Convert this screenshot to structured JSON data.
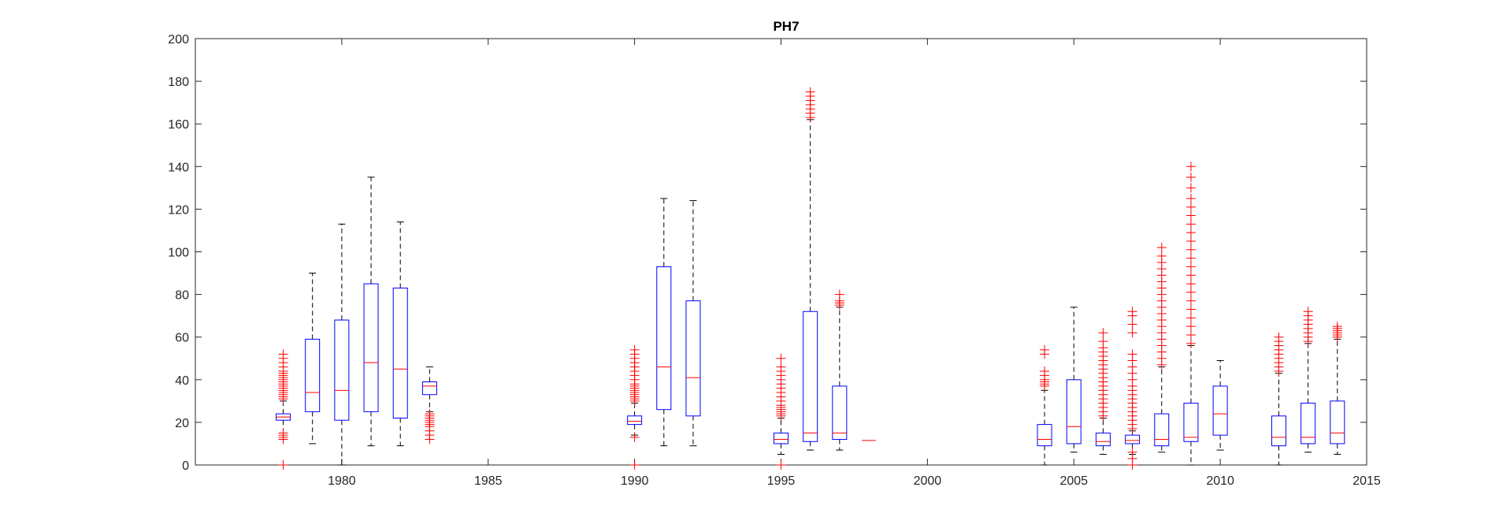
{
  "chart_data": {
    "type": "boxplot",
    "title": "PH7",
    "xlabel": "",
    "ylabel": "",
    "xlim": [
      1975,
      2015
    ],
    "ylim": [
      0,
      200
    ],
    "x_ticks": [
      1980,
      1985,
      1990,
      1995,
      2000,
      2005,
      2010,
      2015
    ],
    "y_ticks": [
      0,
      20,
      40,
      60,
      80,
      100,
      120,
      140,
      160,
      180,
      200
    ],
    "grid": false,
    "colors": {
      "box": "#0000ff",
      "median": "#ff0000",
      "whisker": "#000000",
      "outlier": "#ff0000"
    },
    "boxes": [
      {
        "x": 1978,
        "low": 12,
        "q1": 21,
        "median": 22.5,
        "q3": 24,
        "high": 30,
        "outliers": [
          0,
          12,
          13,
          14,
          15,
          31,
          32,
          33,
          34,
          35,
          36,
          37,
          38,
          39,
          40,
          41,
          42,
          43,
          44,
          46,
          48,
          50,
          52
        ]
      },
      {
        "x": 1979,
        "low": 10,
        "q1": 25,
        "median": 34,
        "q3": 59,
        "high": 90,
        "outliers": []
      },
      {
        "x": 1980,
        "low": 0,
        "q1": 21,
        "median": 35,
        "q3": 68,
        "high": 113,
        "outliers": []
      },
      {
        "x": 1981,
        "low": 9,
        "q1": 25,
        "median": 48,
        "q3": 85,
        "high": 135,
        "outliers": []
      },
      {
        "x": 1982,
        "low": 9,
        "q1": 22,
        "median": 45,
        "q3": 83,
        "high": 114,
        "outliers": []
      },
      {
        "x": 1983,
        "low": 25,
        "q1": 33,
        "median": 37,
        "q3": 39,
        "high": 46,
        "outliers": [
          12,
          14,
          16,
          18,
          19,
          20,
          21,
          22,
          23,
          24
        ]
      },
      {
        "x": 1990,
        "low": 14,
        "q1": 19,
        "median": 20.5,
        "q3": 23,
        "high": 29,
        "outliers": [
          0,
          13,
          30,
          31,
          32,
          33,
          34,
          35,
          36,
          37,
          38,
          40,
          42,
          44,
          46,
          48,
          50,
          52,
          54
        ]
      },
      {
        "x": 1991,
        "low": 9,
        "q1": 26,
        "median": 46,
        "q3": 93,
        "high": 125,
        "outliers": []
      },
      {
        "x": 1992,
        "low": 9,
        "q1": 23,
        "median": 41,
        "q3": 77,
        "high": 124,
        "outliers": []
      },
      {
        "x": 1995,
        "low": 5,
        "q1": 10,
        "median": 12,
        "q3": 15,
        "high": 22,
        "outliers": [
          0,
          23,
          24,
          25,
          26,
          27,
          28,
          30,
          32,
          34,
          36,
          38,
          40,
          42,
          44,
          46,
          50
        ]
      },
      {
        "x": 1996,
        "low": 7,
        "q1": 11,
        "median": 15,
        "q3": 72,
        "high": 162,
        "outliers": [
          163,
          165,
          167,
          169,
          171,
          173,
          175
        ]
      },
      {
        "x": 1997,
        "low": 7,
        "q1": 12,
        "median": 15,
        "q3": 37,
        "high": 74,
        "outliers": [
          75,
          76,
          77,
          80
        ]
      },
      {
        "x": 1998,
        "low": 11.5,
        "q1": 11.5,
        "median": 11.5,
        "q3": 11.5,
        "high": 11.5,
        "outliers": []
      },
      {
        "x": 2004,
        "low": 0,
        "q1": 9,
        "median": 12,
        "q3": 19,
        "high": 35,
        "outliers": [
          37,
          38,
          39,
          40,
          42,
          44,
          52,
          54
        ]
      },
      {
        "x": 2005,
        "low": 6,
        "q1": 10,
        "median": 18,
        "q3": 40,
        "high": 74,
        "outliers": []
      },
      {
        "x": 2006,
        "low": 5,
        "q1": 9,
        "median": 11,
        "q3": 15,
        "high": 22,
        "outliers": [
          23,
          25,
          27,
          29,
          31,
          33,
          35,
          37,
          39,
          41,
          43,
          45,
          47,
          49,
          51,
          53,
          55,
          58,
          62
        ]
      },
      {
        "x": 2007,
        "low": 5,
        "q1": 10,
        "median": 11.5,
        "q3": 14,
        "high": 16,
        "outliers": [
          0,
          3,
          6,
          17,
          19,
          21,
          23,
          25,
          27,
          29,
          31,
          33,
          35,
          37,
          40,
          43,
          46,
          49,
          52,
          62,
          66,
          70,
          72
        ]
      },
      {
        "x": 2008,
        "low": 6,
        "q1": 9,
        "median": 12,
        "q3": 24,
        "high": 46,
        "outliers": [
          47,
          50,
          53,
          56,
          59,
          62,
          65,
          68,
          71,
          74,
          77,
          80,
          83,
          86,
          89,
          92,
          95,
          98,
          102
        ]
      },
      {
        "x": 2009,
        "low": 0,
        "q1": 11,
        "median": 13,
        "q3": 29,
        "high": 56,
        "outliers": [
          57,
          61,
          65,
          69,
          73,
          77,
          81,
          85,
          89,
          93,
          97,
          101,
          105,
          109,
          113,
          117,
          121,
          125,
          130,
          135,
          140
        ]
      },
      {
        "x": 2010,
        "low": 7,
        "q1": 14,
        "median": 24,
        "q3": 37,
        "high": 49,
        "outliers": []
      },
      {
        "x": 2012,
        "low": 0,
        "q1": 9,
        "median": 13,
        "q3": 23,
        "high": 43,
        "outliers": [
          44,
          46,
          48,
          50,
          52,
          54,
          56,
          58,
          60
        ]
      },
      {
        "x": 2013,
        "low": 6,
        "q1": 10,
        "median": 13,
        "q3": 29,
        "high": 57,
        "outliers": [
          58,
          60,
          62,
          64,
          66,
          68,
          70,
          72
        ]
      },
      {
        "x": 2014,
        "low": 5,
        "q1": 10,
        "median": 15,
        "q3": 30,
        "high": 59,
        "outliers": [
          60,
          61,
          62,
          63,
          64,
          65
        ]
      }
    ]
  }
}
